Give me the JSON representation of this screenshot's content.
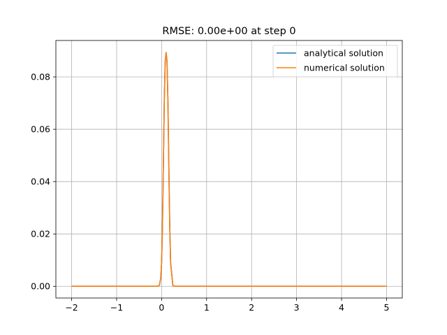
{
  "chart_data": {
    "type": "line",
    "title": "RMSE: 0.00e+00 at step 0",
    "xlabel": "",
    "ylabel": "",
    "xlim": [
      -2.35,
      5.35
    ],
    "ylim": [
      -0.00447,
      0.0939
    ],
    "xticks": [
      -2,
      -1,
      0,
      1,
      2,
      3,
      4,
      5
    ],
    "xtick_labels": [
      "−2",
      "−1",
      "0",
      "1",
      "2",
      "3",
      "4",
      "5"
    ],
    "yticks": [
      0.0,
      0.02,
      0.04,
      0.06,
      0.08
    ],
    "ytick_labels": [
      "0.00",
      "0.02",
      "0.04",
      "0.06",
      "0.08"
    ],
    "grid": true,
    "legend_position": "top-right",
    "x_range": [
      -2,
      5
    ],
    "series": [
      {
        "name": "analytical solution",
        "color": "#1f77b4",
        "x": [
          -2,
          -0.1,
          -0.05,
          -0.02,
          0.0,
          0.02,
          0.04,
          0.06,
          0.08,
          0.1,
          0.12,
          0.14,
          0.16,
          0.18,
          0.2,
          0.25,
          0.3,
          5
        ],
        "y": [
          0,
          0,
          0.0003,
          0.003,
          0.009,
          0.024,
          0.047,
          0.071,
          0.086,
          0.0893,
          0.086,
          0.071,
          0.047,
          0.024,
          0.009,
          0.0003,
          0,
          0
        ]
      },
      {
        "name": "numerical solution",
        "color": "#ff7f0e",
        "x": [
          -2,
          -0.1,
          -0.05,
          -0.02,
          0.0,
          0.02,
          0.04,
          0.06,
          0.08,
          0.1,
          0.12,
          0.14,
          0.16,
          0.18,
          0.2,
          0.25,
          0.3,
          5
        ],
        "y": [
          0,
          0,
          0.0003,
          0.003,
          0.009,
          0.024,
          0.047,
          0.071,
          0.086,
          0.0893,
          0.086,
          0.071,
          0.047,
          0.024,
          0.009,
          0.0003,
          0,
          0
        ]
      }
    ]
  }
}
